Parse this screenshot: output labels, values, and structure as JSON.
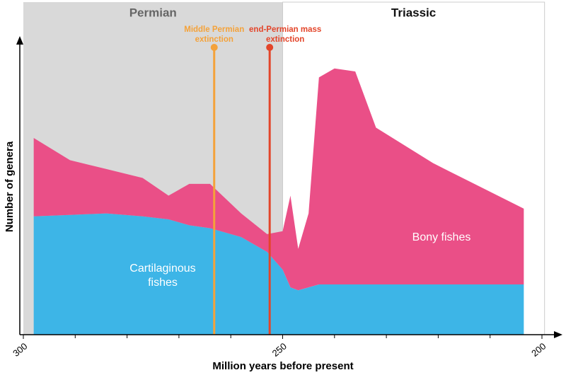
{
  "chart_data": {
    "type": "area",
    "stacked": true,
    "x_label": "Million years before present",
    "y_label": "Number of genera",
    "x": [
      298,
      291,
      284,
      277,
      272,
      268,
      264,
      258,
      253,
      250,
      248.5,
      247,
      245,
      243,
      240,
      236,
      232,
      221,
      203.5
    ],
    "series": [
      {
        "name": "Cartilaginous fishes",
        "color": "#3db5e7",
        "values": [
          40,
          40.5,
          41,
          40,
          39,
          37,
          36,
          33,
          28,
          22,
          16,
          15,
          16,
          17,
          17,
          17,
          17,
          17,
          17
        ]
      },
      {
        "name": "Bony fishes",
        "color": "#ea4f87",
        "values": [
          26.5,
          18.5,
          15,
          13,
          8,
          14,
          15,
          8,
          6,
          13,
          31,
          14,
          25,
          70,
          73,
          72,
          53,
          41,
          25.6
        ]
      }
    ],
    "xlim": [
      300,
      200
    ],
    "xticks": [
      300,
      250,
      200
    ],
    "xminorticks": [
      290,
      280,
      270,
      260,
      240,
      230,
      220,
      210
    ],
    "ylim": [
      0,
      100
    ],
    "periods": [
      {
        "label": "Permian",
        "start": 300,
        "end": 250,
        "color": "#d9d9d9",
        "text_color": "#666666"
      },
      {
        "label": "Triassic",
        "start": 250,
        "end": 199.5,
        "color": "#ffffff",
        "text_color": "#111111"
      }
    ],
    "events": [
      {
        "label": "Middle Permian extinction",
        "x": 263.2,
        "color": "#f4a23a"
      },
      {
        "label": "end-Permian mass extinction",
        "x": 252.5,
        "color": "#e3452a"
      }
    ]
  }
}
